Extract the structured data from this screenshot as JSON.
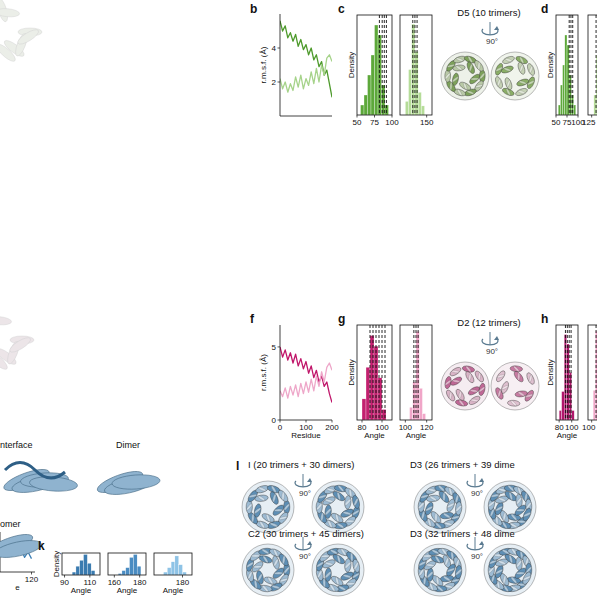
{
  "chart_data": [
    {
      "type": "line",
      "y_label": "r.m.s.f. (Å)",
      "x": [
        0,
        10,
        20,
        30,
        40,
        50,
        60,
        70,
        80,
        90,
        100,
        110,
        120,
        130,
        140,
        150,
        160,
        170,
        180,
        190,
        200
      ],
      "series": [
        {
          "color": "#4e9a2c",
          "values": [
            5.6,
            5.0,
            5.3,
            4.6,
            4.9,
            4.4,
            4.8,
            4.1,
            4.5,
            3.9,
            4.2,
            3.6,
            4.0,
            3.3,
            3.6,
            2.9,
            3.2,
            2.4,
            2.7,
            1.9,
            1.1
          ]
        },
        {
          "color": "#a6d38a",
          "values": [
            2.2,
            1.6,
            2.0,
            1.4,
            1.9,
            1.5,
            2.3,
            1.7,
            2.4,
            1.6,
            2.2,
            1.8,
            2.6,
            1.9,
            2.8,
            2.0,
            3.0,
            2.4,
            3.4,
            3.6,
            3.2
          ]
        }
      ],
      "xlim": [
        0,
        200
      ],
      "ylim": [
        0,
        6
      ],
      "yticks": [
        2,
        4
      ],
      "tick_labels": "y"
    },
    {
      "type": "histogram",
      "y_label": "Density",
      "bins": [
        55,
        60,
        65,
        70,
        75,
        80,
        85,
        90,
        95
      ],
      "counts": [
        0.01,
        0.02,
        0.04,
        0.06,
        0.09,
        0.08,
        0.03,
        0.01
      ],
      "color": "#5da83a",
      "reference_lines": [
        82,
        86,
        89,
        92
      ],
      "xlim": [
        50,
        100
      ],
      "ylim": [
        0,
        0.1
      ],
      "xticks": [
        50,
        75,
        100
      ],
      "tick_labels": "x"
    },
    {
      "type": "histogram",
      "bins": [
        130,
        133,
        136,
        139,
        142,
        145,
        148
      ],
      "counts": [
        0.03,
        0.1,
        0.2,
        0.14,
        0.05,
        0.02
      ],
      "color": "#b5dc98",
      "reference_lines": [
        137,
        139,
        141
      ],
      "xlim": [
        125,
        155
      ],
      "ylim": [
        0,
        0.22
      ],
      "xticks": [
        150
      ],
      "tick_labels": "x"
    },
    {
      "type": "histogram",
      "y_label": "Density",
      "bins": [
        55,
        60,
        65,
        70,
        75,
        80,
        85,
        90,
        95
      ],
      "counts": [
        0.01,
        0.03,
        0.05,
        0.08,
        0.07,
        0.04,
        0.02,
        0.01
      ],
      "color": "#5da83a",
      "reference_lines": [
        80,
        84,
        88
      ],
      "xlim": [
        50,
        100
      ],
      "ylim": [
        0,
        0.1
      ],
      "xticks": [
        50,
        75,
        100
      ],
      "tick_labels": "x"
    },
    {
      "type": "histogram",
      "bins": [
        128,
        131,
        134,
        137,
        140
      ],
      "counts": [
        0.04,
        0.12,
        0.18,
        0.06
      ],
      "color": "#b5dc98",
      "reference_lines": [
        131,
        133
      ],
      "xlim": [
        120,
        150
      ],
      "ylim": [
        0,
        0.2
      ],
      "xticks": [
        125
      ],
      "tick_labels": "x"
    },
    {
      "type": "line",
      "x_label": "Residue",
      "y_label": "r.m.s.f. (Å)",
      "x": [
        0,
        10,
        20,
        30,
        40,
        50,
        60,
        70,
        80,
        90,
        100,
        110,
        120,
        130,
        140,
        150,
        160,
        170,
        180,
        190,
        200
      ],
      "series": [
        {
          "color": "#c0166a",
          "values": [
            5.0,
            4.3,
            4.8,
            4.1,
            4.6,
            3.9,
            4.5,
            3.7,
            4.2,
            3.5,
            4.0,
            3.2,
            3.7,
            2.9,
            3.4,
            2.6,
            3.0,
            2.3,
            2.6,
            1.8,
            1.2
          ]
        },
        {
          "color": "#eea7c9",
          "values": [
            2.0,
            1.6,
            2.2,
            1.5,
            2.3,
            1.7,
            2.4,
            1.6,
            2.5,
            1.8,
            2.6,
            1.9,
            2.8,
            2.0,
            3.0,
            2.3,
            3.3,
            2.6,
            3.6,
            3.9,
            3.4
          ]
        }
      ],
      "xlim": [
        0,
        200
      ],
      "ylim": [
        0,
        6.5
      ],
      "xticks": [
        0,
        100,
        200
      ],
      "yticks": [
        0,
        5
      ],
      "tick_labels": true
    },
    {
      "type": "histogram",
      "x_label": "Angle",
      "y_label": "Density",
      "bins": [
        80,
        84,
        88,
        92,
        96,
        100,
        104
      ],
      "counts": [
        0.02,
        0.05,
        0.08,
        0.07,
        0.04,
        0.01
      ],
      "color": "#c2206f",
      "reference_lines": [
        88,
        91,
        94,
        97,
        100,
        103
      ],
      "xlim": [
        75,
        110
      ],
      "ylim": [
        0,
        0.09
      ],
      "xticks": [
        80,
        100
      ],
      "tick_labels": "x"
    },
    {
      "type": "histogram",
      "x_label": "Angle",
      "bins": [
        104,
        107,
        110,
        113,
        116,
        119
      ],
      "counts": [
        0.02,
        0.06,
        0.14,
        0.05,
        0.01
      ],
      "color": "#f0a6c8",
      "reference_lines": [
        108,
        110,
        112
      ],
      "xlim": [
        95,
        125
      ],
      "ylim": [
        0,
        0.15
      ],
      "xticks": [
        100,
        120
      ],
      "tick_labels": "x"
    },
    {
      "type": "histogram",
      "x_label": "Angle",
      "y_label": "Density",
      "bins": [
        80,
        84,
        88,
        92,
        96,
        100,
        104
      ],
      "counts": [
        0.01,
        0.03,
        0.09,
        0.08,
        0.05,
        0.01
      ],
      "color": "#b0176b",
      "reference_lines": [
        90,
        93,
        96,
        99
      ],
      "xlim": [
        75,
        110
      ],
      "ylim": [
        0,
        0.1
      ],
      "xticks": [
        80,
        100
      ],
      "tick_labels": "x"
    },
    {
      "type": "histogram",
      "bins": [
        102,
        105,
        108,
        111
      ],
      "counts": [
        0.05,
        0.15,
        0.03
      ],
      "color": "#f0a6c8",
      "reference_lines": [
        106
      ],
      "xlim": [
        95,
        125
      ],
      "ylim": [
        0,
        0.16
      ],
      "xticks": [
        100
      ],
      "tick_labels": "x"
    },
    {
      "type": "line",
      "x_label": "e",
      "x": [
        80,
        85,
        90,
        95,
        100,
        105,
        110,
        115,
        120
      ],
      "series": [
        {
          "color": "#3b7fb5",
          "values": [
            1.6,
            2.2,
            1.4,
            2.0,
            1.3,
            1.8,
            1.1,
            1.5,
            1.0
          ]
        }
      ],
      "xlim": [
        75,
        125
      ],
      "ylim": [
        0,
        3
      ],
      "xticks": [
        120
      ],
      "tick_labels": "x"
    },
    {
      "type": "histogram",
      "x_label": "Angle",
      "y_label": "Density",
      "bins": [
        96,
        99,
        102,
        105,
        108,
        111,
        114
      ],
      "counts": [
        0.02,
        0.06,
        0.1,
        0.14,
        0.08,
        0.03
      ],
      "color": "#3a7bb0",
      "xlim": [
        88,
        118
      ],
      "ylim": [
        0,
        0.15
      ],
      "xticks": [
        90,
        110
      ],
      "tick_labels": "x"
    },
    {
      "type": "histogram",
      "x_label": "Angle",
      "bins": [
        163,
        166,
        169,
        172,
        175,
        178,
        181
      ],
      "counts": [
        0.01,
        0.03,
        0.05,
        0.12,
        0.14,
        0.06
      ],
      "color": "#4a8cc2",
      "xlim": [
        155,
        185
      ],
      "ylim": [
        0,
        0.15
      ],
      "xticks": [
        160,
        180
      ],
      "tick_labels": "x"
    },
    {
      "type": "histogram",
      "x_label": "Angle",
      "bins": [
        170,
        172,
        174,
        176,
        178,
        180,
        182
      ],
      "counts": [
        0.02,
        0.05,
        0.09,
        0.13,
        0.07,
        0.02
      ],
      "color": "#8ec3e6",
      "xlim": [
        165,
        185
      ],
      "ylim": [
        0,
        0.15
      ],
      "xticks": [
        180
      ],
      "tick_labels": "x"
    }
  ],
  "figure": {
    "panel_labels": [
      "b",
      "c",
      "d",
      "f",
      "g",
      "h",
      "k",
      "l"
    ],
    "structure_titles": [
      "D5 (10 trimers)",
      "D2 (12 trimers)",
      "I (20 trimers + 30 dimers)",
      "D3 (26 trimers + 39 dime",
      "C2 (30 trimers + 45 dimers)",
      "D3 (32 trimers + 48 dime"
    ],
    "rotation_label": "90°",
    "structure_labels": [
      "nterface",
      "Dimer",
      "omer"
    ]
  }
}
